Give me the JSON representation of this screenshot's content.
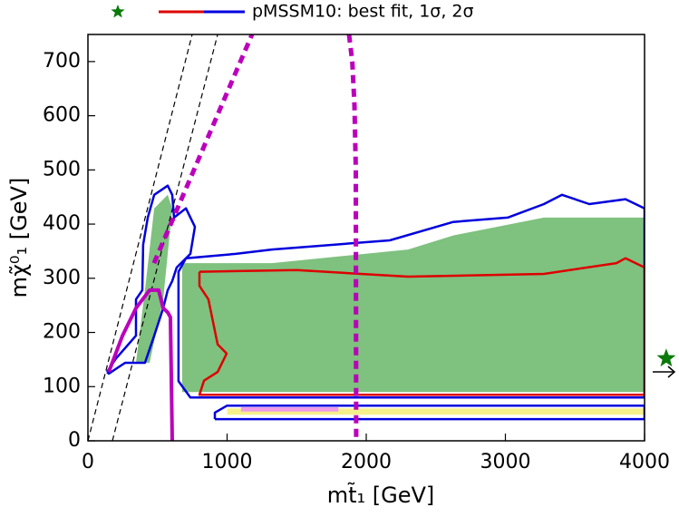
{
  "chart_data": {
    "type": "contour",
    "legend_label": "pMSSM10: best fit, 1σ, 2σ",
    "x_label": "mt̃₁ [GeV]",
    "y_label": "mχ̃⁰₁ [GeV]",
    "xlim": [
      0,
      4000
    ],
    "ylim": [
      0,
      750
    ],
    "xticks": [
      0,
      1000,
      2000,
      3000,
      4000
    ],
    "yticks": [
      0,
      100,
      200,
      300,
      400,
      500,
      600,
      700
    ],
    "series": [
      {
        "color": "#7fc17f",
        "fill": true,
        "x": [
          677,
          1322,
          2300,
          2625,
          3277,
          4000,
          4000,
          677
        ],
        "y": [
          328,
          328,
          353,
          379,
          412,
          412,
          90,
          90
        ]
      },
      {
        "color": "#7fc17f",
        "fill": true,
        "x": [
          345,
          410,
          476,
          573,
          606,
          541,
          443
        ],
        "y": [
          144,
          278,
          429,
          454,
          429,
          261,
          144
        ]
      },
      {
        "color": "#f5f08a",
        "fill": true,
        "x": [
          1000,
          4000,
          4000,
          1000
        ],
        "y": [
          48,
          48,
          60,
          60
        ]
      },
      {
        "color": "#f09ae8",
        "fill": true,
        "x": [
          1100,
          1800,
          1800,
          1100
        ],
        "y": [
          54,
          54,
          62,
          62
        ]
      },
      {
        "color": "#000000",
        "dash": true,
        "width": 1.2,
        "x": [
          0,
          749
        ],
        "y": [
          0,
          750
        ]
      },
      {
        "color": "#000000",
        "dash": true,
        "width": 1.2,
        "x": [
          176,
          932
        ],
        "y": [
          0,
          750
        ]
      },
      {
        "color": "#0000dd",
        "width": 2.5,
        "x": [
          704,
          1062,
          1322,
          2169,
          2625,
          3016,
          3277,
          3407,
          3603,
          3863,
          4000,
          4000,
          736,
          651,
          651,
          704
        ],
        "y": [
          337,
          345,
          353,
          370,
          404,
          412,
          437,
          454,
          437,
          446,
          429,
          80,
          80,
          110,
          312,
          337
        ]
      },
      {
        "color": "#0000dd",
        "width": 2.5,
        "x": [
          137,
          202,
          345,
          345,
          391,
          397,
          430,
          476,
          573,
          606,
          619,
          704,
          769,
          736,
          638,
          606,
          573,
          541,
          476,
          410,
          267,
          150,
          137
        ],
        "y": [
          127,
          152,
          194,
          261,
          278,
          362,
          412,
          454,
          471,
          454,
          412,
          429,
          395,
          345,
          320,
          295,
          278,
          245,
          194,
          144,
          144,
          124,
          127
        ]
      },
      {
        "color": "#0000dd",
        "width": 2.5,
        "x": [
          912,
          4000,
          4000,
          1000,
          912,
          912
        ],
        "y": [
          40,
          40,
          65,
          65,
          52,
          40
        ]
      },
      {
        "color": "#dd0000",
        "width": 2.5,
        "in_legend": true,
        "x": [
          801,
          1500,
          2300,
          3277,
          3798,
          3863,
          4000,
          4000,
          801,
          834,
          932,
          997,
          932,
          866,
          801,
          801
        ],
        "y": [
          312,
          315,
          303,
          308,
          328,
          337,
          320,
          85,
          85,
          111,
          127,
          161,
          178,
          261,
          286,
          312
        ]
      },
      {
        "color": "#bb00bb",
        "dash": true,
        "width": 5,
        "x": [
          475,
          1179
        ],
        "y": [
          328,
          750
        ]
      },
      {
        "color": "#bb00bb",
        "dash": true,
        "width": 5,
        "x": [
          1876,
          1900,
          1915,
          1925,
          1928
        ],
        "y": [
          750,
          700,
          620,
          500,
          0
        ]
      },
      {
        "color": "#bb00bb",
        "width": 4,
        "x": [
          150,
          248,
          345,
          443,
          508,
          541,
          573,
          593,
          606
        ],
        "y": [
          127,
          194,
          245,
          278,
          278,
          245,
          237,
          228,
          0
        ]
      },
      {
        "color": "#0a7a0a",
        "marker": "star",
        "in_legend": true,
        "x": [
          4156
        ],
        "y": [
          152
        ]
      }
    ],
    "legend_blue": 6
  }
}
